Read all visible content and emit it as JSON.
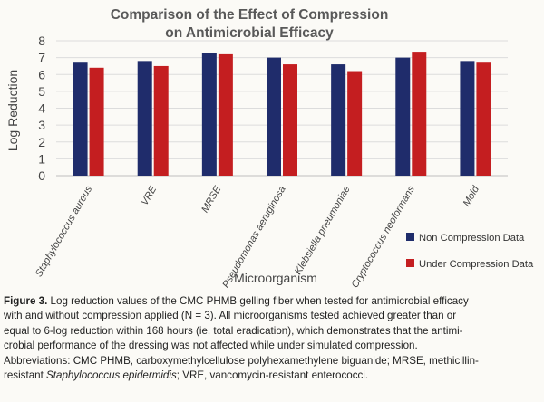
{
  "chart_data": {
    "type": "bar",
    "title": "Comparison of the Effect of Compression on Antimicrobial Efficacy",
    "title_lines": [
      "Comparison of the Effect of Compression",
      "on Antimicrobial Efficacy"
    ],
    "xlabel": "Microorganism",
    "ylabel": "Log Reduction",
    "ylim": [
      0,
      8
    ],
    "yticks": [
      0,
      1,
      2,
      3,
      4,
      5,
      6,
      7,
      8
    ],
    "grid": true,
    "legend_position": "bottom-right",
    "categories": [
      "Staphylococcus aureus",
      "VRE",
      "MRSE",
      "Pseudomonas aeruginosa",
      "Klebsiella pneumoniae",
      "Cryptococcus neoformans",
      "Mold"
    ],
    "series": [
      {
        "name": "Non Compression Data",
        "color": "#1f2c6b",
        "values": [
          6.7,
          6.8,
          7.3,
          7.0,
          6.6,
          7.0,
          6.8
        ]
      },
      {
        "name": "Under Compression Data",
        "color": "#c41e20",
        "values": [
          6.4,
          6.5,
          7.2,
          6.6,
          6.2,
          7.35,
          6.7
        ]
      }
    ]
  },
  "caption": {
    "label": "Figure 3.",
    "line1": " Log reduction values of the CMC PHMB gelling fiber when tested for antimicrobial efficacy",
    "line2": "with and without compression applied (N = 3). All microorganisms tested achieved greater than or",
    "line3": "equal to 6-log reduction within 168 hours (ie, total eradication), which demonstrates that the antimi-",
    "line4": "crobial performance of the dressing was not affected while under simulated compression.",
    "line5": "Abbreviations: CMC PHMB, carboxymethylcellulose polyhexamethylene biguanide; MRSE, methicillin-",
    "line6a": "resistant ",
    "line6b": "Staphylococcus epidermidis",
    "line6c": "; VRE, vancomycin-resistant enterococci."
  }
}
